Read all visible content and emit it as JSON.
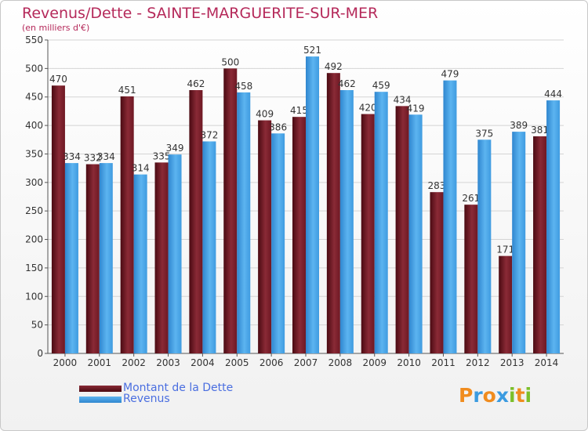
{
  "chart_data": {
    "type": "bar",
    "title": "Revenus/Dette - SAINTE-MARGUERITE-SUR-MER",
    "subtitle": "(en milliers d'€)",
    "categories": [
      "2000",
      "2001",
      "2002",
      "2003",
      "2004",
      "2005",
      "2006",
      "2007",
      "2008",
      "2009",
      "2010",
      "2011",
      "2012",
      "2013",
      "2014"
    ],
    "series": [
      {
        "name": "Montant de la Dette",
        "color": "#7a1f2b",
        "values": [
          470,
          332,
          451,
          335,
          462,
          500,
          409,
          415,
          492,
          420,
          434,
          283,
          261,
          171,
          381
        ]
      },
      {
        "name": "Revenus",
        "color": "#4aa3e6",
        "values": [
          334,
          334,
          314,
          349,
          372,
          458,
          386,
          521,
          462,
          459,
          419,
          479,
          375,
          389,
          444
        ]
      }
    ],
    "ylim": [
      0,
      550
    ],
    "yticks": [
      0,
      50,
      100,
      150,
      200,
      250,
      300,
      350,
      400,
      450,
      500,
      550
    ],
    "grid": true,
    "legend_position": "bottom-left"
  },
  "logo": {
    "letters": [
      {
        "char": "P",
        "color": "#f08c1e"
      },
      {
        "char": "r",
        "color": "#3b9be0"
      },
      {
        "char": "o",
        "color": "#f08c1e"
      },
      {
        "char": "x",
        "color": "#3b9be0"
      },
      {
        "char": "i",
        "color": "#7cbf2a"
      },
      {
        "char": "t",
        "color": "#f08c1e"
      },
      {
        "char": "i",
        "color": "#7cbf2a"
      }
    ]
  }
}
